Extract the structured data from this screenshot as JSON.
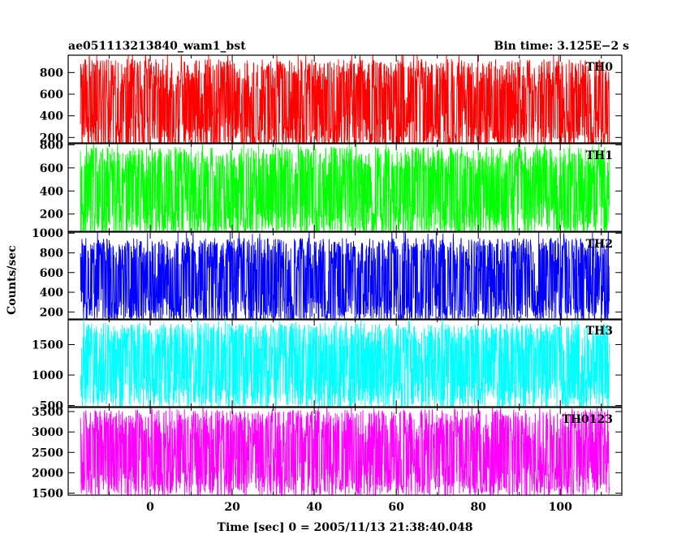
{
  "header": {
    "title_left": "ae051113213840_wam1_bst",
    "title_right": "Bin time: 3.125E−2 s"
  },
  "axes": {
    "ylabel": "Counts/sec",
    "xlabel": "Time [sec] 0 = 2005/11/13 21:38:40.048"
  },
  "chart_data": {
    "type": "line",
    "bin_time_s": 0.03125,
    "x_range": [
      -17,
      112
    ],
    "xlim": [
      -20,
      115
    ],
    "xticks": [
      0,
      20,
      40,
      60,
      80,
      100
    ],
    "x_tick_labels": [
      "0",
      "20",
      "40",
      "60",
      "80",
      "100"
    ],
    "grid": false,
    "legend": "none",
    "series": [
      {
        "name": "TH0",
        "color": "#ff0000",
        "ylim": [
          150,
          960
        ],
        "yticks": [
          200,
          400,
          600,
          800
        ],
        "y_tick_labels": [
          "200",
          "400",
          "600",
          "800"
        ],
        "typical_range": [
          150,
          960
        ],
        "mean": 500
      },
      {
        "name": "TH1",
        "color": "#00ff00",
        "ylim": [
          50,
          810
        ],
        "yticks": [
          200,
          400,
          600,
          800
        ],
        "y_tick_labels": [
          "200",
          "400",
          "600",
          "800"
        ],
        "typical_range": [
          60,
          790
        ],
        "mean": 400
      },
      {
        "name": "TH2",
        "color": "#0000ff",
        "ylim": [
          120,
          1010
        ],
        "yticks": [
          200,
          400,
          600,
          800,
          1000
        ],
        "y_tick_labels": [
          "200",
          "400",
          "600",
          "800",
          "1000"
        ],
        "typical_range": [
          170,
          990
        ],
        "mean": 520
      },
      {
        "name": "TH3",
        "color": "#00ffff",
        "ylim": [
          480,
          1920
        ],
        "yticks": [
          500,
          1000,
          1500
        ],
        "y_tick_labels": [
          "500",
          "1000",
          "1500"
        ],
        "typical_range": [
          520,
          1850
        ],
        "mean": 1150
      },
      {
        "name": "TH0123",
        "color": "#ff00ff",
        "ylim": [
          1450,
          3600
        ],
        "yticks": [
          1500,
          2000,
          2500,
          3000,
          3500
        ],
        "y_tick_labels": [
          "1500",
          "2000",
          "2500",
          "3000",
          "3500"
        ],
        "typical_range": [
          1500,
          3550
        ],
        "mean": 2480
      }
    ]
  }
}
